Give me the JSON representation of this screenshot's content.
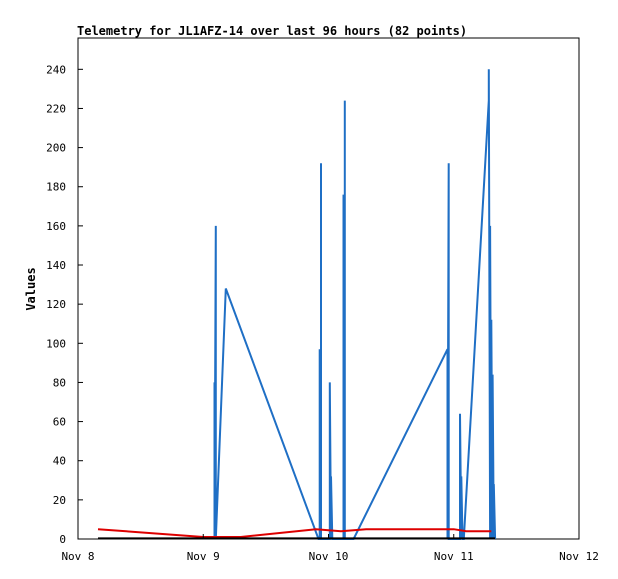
{
  "chart_data": {
    "type": "line",
    "title": "Telemetry for JL1AFZ-14 over last 96 hours (82 points)",
    "xlabel": "",
    "ylabel": "Values",
    "x_tick_labels": [
      "Nov 8",
      "Nov 9",
      "Nov 10",
      "Nov 11",
      "Nov 12"
    ],
    "x_tick_values": [
      0,
      1,
      2,
      3,
      4
    ],
    "xlim": [
      0,
      4
    ],
    "ylim": [
      0,
      256
    ],
    "y_ticks": [
      0,
      20,
      40,
      60,
      80,
      100,
      120,
      140,
      160,
      180,
      200,
      220,
      240
    ],
    "grid": false,
    "series": [
      {
        "color": "#1f6fc5",
        "x": [
          1.09,
          1.09,
          1.09,
          1.1,
          1.1,
          1.1,
          1.18,
          1.18,
          1.92,
          1.93,
          1.93,
          1.94,
          1.94,
          1.94,
          2.01,
          2.01,
          2.02,
          2.02,
          2.03,
          2.03,
          2.12,
          2.12,
          2.13,
          2.13,
          2.13,
          2.14,
          2.14,
          2.14,
          2.2,
          2.95,
          2.95,
          2.96,
          2.96,
          3.05,
          3.05,
          3.06,
          3.06,
          3.07,
          3.07,
          3.07,
          3.08,
          3.28,
          3.28,
          3.29,
          3.29,
          3.3,
          3.3,
          3.31,
          3.31,
          3.32,
          3.32,
          3.33
        ],
        "y": [
          0,
          80,
          0,
          160,
          0,
          0,
          128,
          128,
          0,
          0,
          97,
          0,
          192,
          0,
          0,
          80,
          0,
          32,
          0,
          0,
          0,
          176,
          0,
          224,
          0,
          0,
          0,
          0,
          0,
          97,
          0,
          192,
          0,
          0,
          64,
          0,
          32,
          0,
          0,
          0,
          0,
          224,
          240,
          0,
          160,
          0,
          112,
          0,
          84,
          0,
          28,
          0
        ]
      },
      {
        "color": "#dd0000",
        "x": [
          0.16,
          1.0,
          1.3,
          1.9,
          2.1,
          2.3,
          2.8,
          3.0,
          3.1,
          3.3
        ],
        "y": [
          5,
          1,
          1,
          5,
          4,
          5,
          5,
          5,
          4,
          4
        ]
      },
      {
        "color": "#000000",
        "x": [
          0.16,
          3.33
        ],
        "y": [
          0.3,
          0.3
        ]
      }
    ]
  }
}
